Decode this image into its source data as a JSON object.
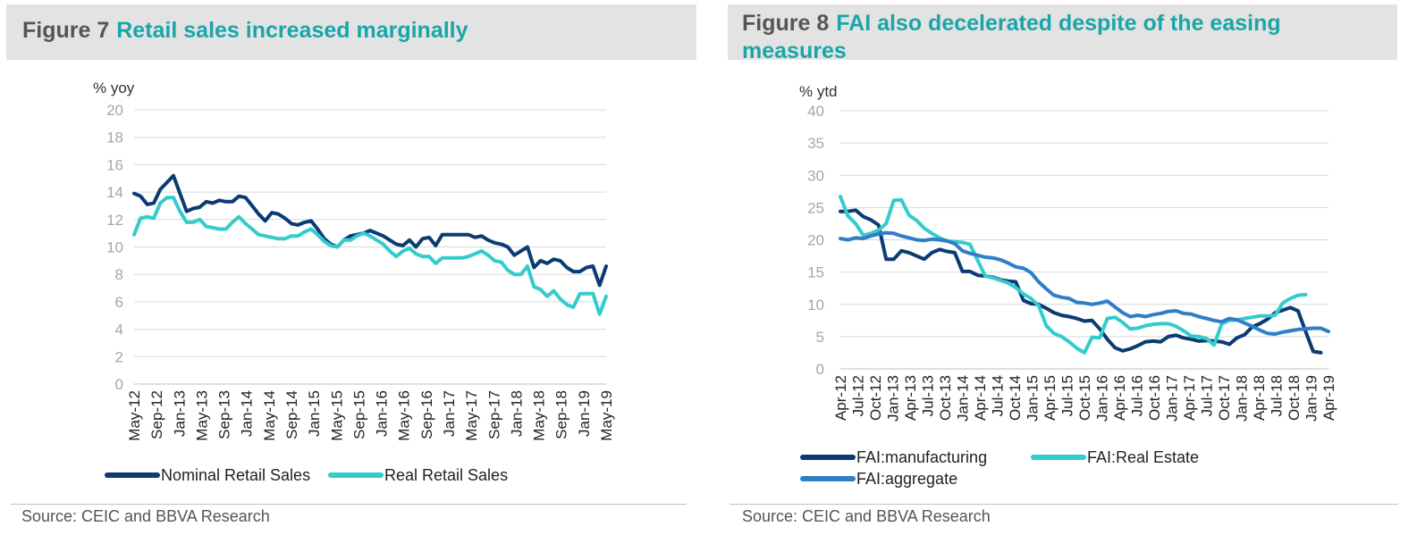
{
  "figures": [
    {
      "number": "Figure 7",
      "title": "Retail sales increased marginally",
      "source": "Source:  CEIC and BBVA Research"
    },
    {
      "number": "Figure 8",
      "title": "FAI also decelerated despite of the easing measures",
      "source": "Source:  CEIC and BBVA Research"
    }
  ],
  "colors": {
    "title_accent": "#1aa6a8",
    "navy": "#0b3b73",
    "turquoise": "#33cccc",
    "mid_blue": "#2f7fc8",
    "grid": "#d9d9d9",
    "axis_text": "#a6a6a6"
  },
  "chart_data": [
    {
      "type": "line",
      "ylabel": "% yoy",
      "ylim": [
        0,
        20
      ],
      "yticks": [
        0,
        2,
        4,
        6,
        8,
        10,
        12,
        14,
        16,
        18,
        20
      ],
      "xtick_labels": [
        "May-12",
        "Sep-12",
        "Jan-13",
        "May-13",
        "Sep-13",
        "Jan-14",
        "May-14",
        "Sep-14",
        "Jan-15",
        "May-15",
        "Sep-15",
        "Jan-16",
        "May-16",
        "Sep-16",
        "Jan-17",
        "May-17",
        "Sep-17",
        "Jan-18",
        "May-18",
        "Sep-18",
        "Jan-19",
        "May-19"
      ],
      "grid": true,
      "legend_position": "bottom",
      "series": [
        {
          "name": "Nominal Retail Sales",
          "color": "#0b3b73",
          "values": [
            13.9,
            13.7,
            13.1,
            13.2,
            14.2,
            14.7,
            15.2,
            13.9,
            12.6,
            12.8,
            12.9,
            13.3,
            13.2,
            13.4,
            13.3,
            13.3,
            13.7,
            13.6,
            13.0,
            12.4,
            11.9,
            12.5,
            12.4,
            12.1,
            11.7,
            11.6,
            11.8,
            11.9,
            11.3,
            10.6,
            10.2,
            10.0,
            10.5,
            10.8,
            10.9,
            11.0,
            11.2,
            11.0,
            10.8,
            10.5,
            10.2,
            10.1,
            10.5,
            10.0,
            10.6,
            10.7,
            10.1,
            10.9,
            10.9,
            10.9,
            10.9,
            10.9,
            10.7,
            10.8,
            10.5,
            10.3,
            10.2,
            10.0,
            9.4,
            9.7,
            10.0,
            8.5,
            9.0,
            8.8,
            9.1,
            9.0,
            8.5,
            8.2,
            8.2,
            8.5,
            8.6,
            7.2,
            8.6
          ]
        },
        {
          "name": "Real Retail Sales",
          "color": "#33cccc",
          "values": [
            10.9,
            12.1,
            12.2,
            12.1,
            13.2,
            13.6,
            13.6,
            12.6,
            11.8,
            11.8,
            12.0,
            11.5,
            11.4,
            11.3,
            11.3,
            11.8,
            12.2,
            11.7,
            11.3,
            10.9,
            10.8,
            10.7,
            10.6,
            10.6,
            10.8,
            10.8,
            11.1,
            11.3,
            10.9,
            10.4,
            10.1,
            10.0,
            10.5,
            10.5,
            10.8,
            11.0,
            10.8,
            10.5,
            10.2,
            9.7,
            9.3,
            9.7,
            9.9,
            9.5,
            9.3,
            9.3,
            8.8,
            9.2,
            9.2,
            9.2,
            9.2,
            9.3,
            9.5,
            9.7,
            9.4,
            9.0,
            8.9,
            8.3,
            8.0,
            8.0,
            8.6,
            7.1,
            6.9,
            6.4,
            6.8,
            6.2,
            5.8,
            5.6,
            6.6,
            6.6,
            6.6,
            5.1,
            6.4
          ]
        }
      ]
    },
    {
      "type": "line",
      "ylabel": "% ytd",
      "ylim": [
        0,
        40
      ],
      "yticks": [
        0,
        5,
        10,
        15,
        20,
        25,
        30,
        35,
        40
      ],
      "xtick_labels": [
        "Apr-12",
        "Jul-12",
        "Oct-12",
        "Jan-13",
        "Apr-13",
        "Jul-13",
        "Oct-13",
        "Jan-14",
        "Apr-14",
        "Jul-14",
        "Oct-14",
        "Jan-15",
        "Apr-15",
        "Jul-15",
        "Oct-15",
        "Jan-16",
        "Apr-16",
        "Jul-16",
        "Oct-16",
        "Jan-17",
        "Apr-17",
        "Jul-17",
        "Oct-17",
        "Jan-18",
        "Apr-18",
        "Jul-18",
        "Oct-18",
        "Jan-19",
        "Apr-19"
      ],
      "grid": true,
      "legend_position": "bottom",
      "series": [
        {
          "name": "FAI:manufacturing",
          "color": "#0b3b73",
          "values": [
            24.4,
            24.4,
            24.6,
            23.6,
            23.1,
            22.3,
            17.0,
            17.0,
            18.3,
            18.0,
            17.5,
            17.0,
            18.0,
            18.5,
            18.2,
            18.0,
            15.1,
            15.1,
            14.5,
            14.4,
            14.2,
            13.8,
            13.6,
            13.5,
            10.6,
            10.1,
            10.0,
            9.4,
            8.7,
            8.3,
            8.1,
            7.8,
            7.4,
            7.5,
            6.2,
            4.6,
            3.3,
            2.8,
            3.1,
            3.6,
            4.2,
            4.3,
            4.2,
            5.0,
            5.2,
            4.8,
            4.6,
            4.3,
            4.4,
            4.3,
            4.2,
            3.8,
            4.8,
            5.3,
            6.5,
            7.0,
            7.7,
            8.7,
            9.1,
            9.5,
            9.0,
            5.8,
            2.7,
            2.5
          ]
        },
        {
          "name": "FAI:Real Estate",
          "color": "#33cccc",
          "values": [
            26.7,
            23.7,
            22.5,
            20.7,
            21.0,
            21.5,
            22.5,
            26.1,
            26.2,
            23.8,
            23.0,
            21.8,
            21.0,
            20.3,
            19.8,
            19.7,
            19.6,
            19.3,
            16.8,
            14.4,
            14.1,
            13.7,
            13.3,
            12.6,
            11.6,
            10.9,
            9.8,
            6.7,
            5.5,
            5.0,
            4.2,
            3.2,
            2.5,
            4.9,
            4.8,
            7.8,
            8.0,
            7.2,
            6.2,
            6.3,
            6.7,
            6.9,
            7.0,
            7.0,
            6.6,
            5.9,
            5.1,
            5.0,
            4.7,
            3.7,
            7.0,
            7.5,
            7.6,
            7.8,
            8.0,
            8.2,
            8.2,
            8.3,
            10.2,
            10.9,
            11.4,
            11.5
          ]
        },
        {
          "name": "FAI:aggregate",
          "color": "#2f7fc8",
          "values": [
            20.2,
            20.0,
            20.3,
            20.2,
            20.6,
            20.9,
            21.1,
            21.0,
            20.6,
            20.3,
            20.0,
            19.9,
            20.1,
            20.0,
            19.8,
            19.4,
            18.3,
            17.9,
            17.6,
            17.3,
            17.2,
            16.9,
            16.4,
            15.8,
            15.6,
            14.9,
            13.5,
            12.4,
            11.4,
            11.1,
            10.9,
            10.3,
            10.2,
            10.0,
            10.2,
            10.5,
            9.6,
            8.7,
            8.1,
            8.3,
            8.1,
            8.4,
            8.6,
            8.9,
            9.0,
            8.6,
            8.5,
            8.1,
            7.8,
            7.5,
            7.3,
            7.8,
            7.6,
            7.1,
            6.6,
            6.0,
            5.5,
            5.4,
            5.7,
            5.9,
            6.1,
            6.2,
            6.3,
            6.3,
            5.8
          ]
        }
      ]
    }
  ]
}
